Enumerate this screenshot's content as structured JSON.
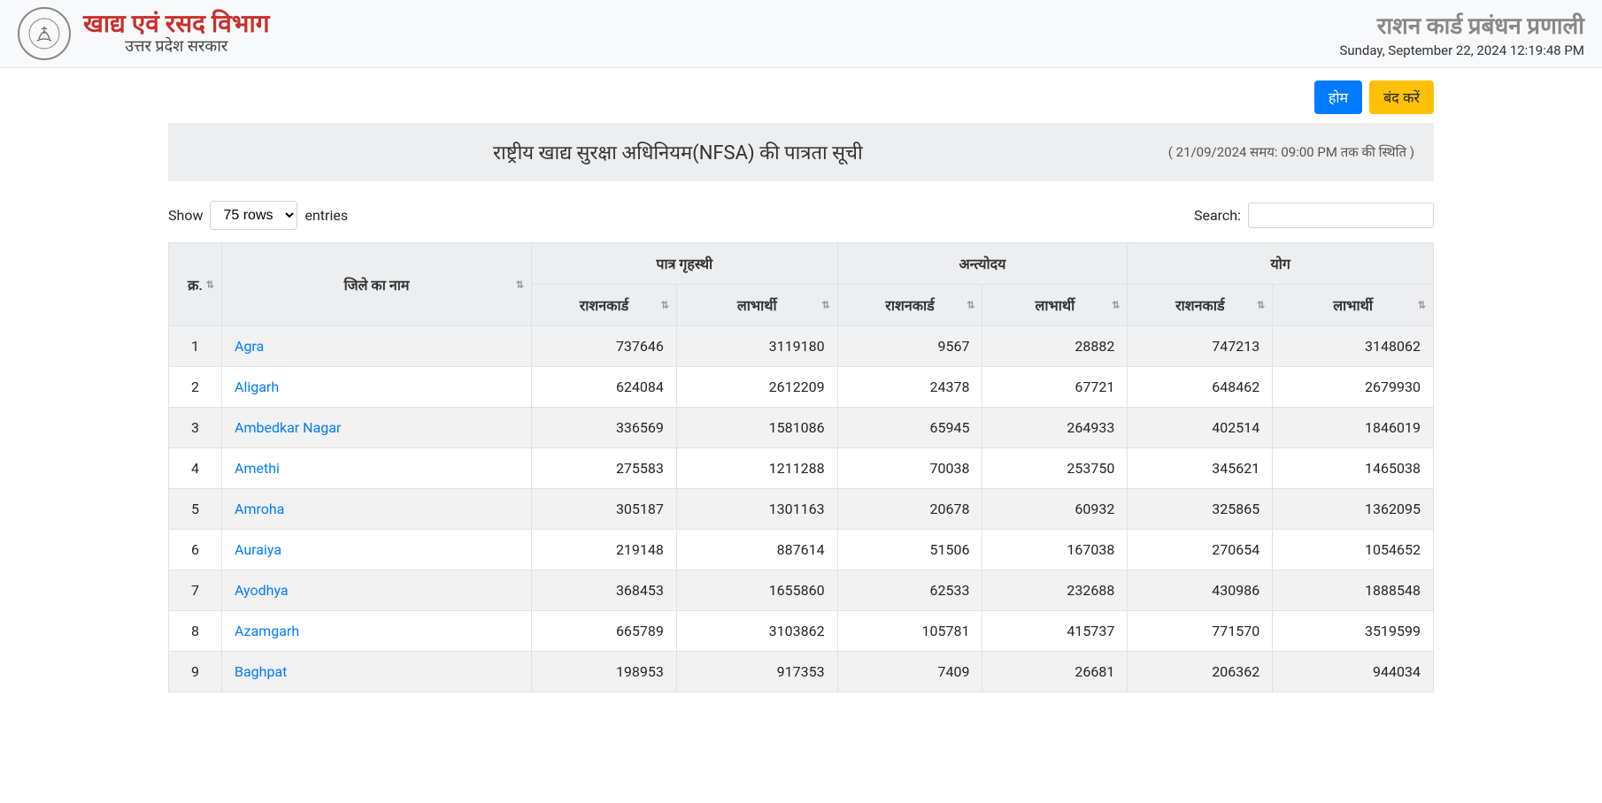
{
  "header": {
    "dept_name": "खाद्य एवं रसद विभाग",
    "dept_sub": "उत्तर प्रदेश सरकार",
    "system_name": "राशन कार्ड प्रबंधन प्रणाली",
    "datetime": "Sunday, September 22, 2024 12:19:48 PM"
  },
  "buttons": {
    "home": "होम",
    "close": "बंद करें"
  },
  "title_bar": {
    "title": "राष्ट्रीय खाद्य सुरक्षा अधिनियम(NFSA) की पात्रता सूची",
    "status": "( 21/09/2024 समय: 09:00 PM तक की स्थिति )"
  },
  "controls": {
    "show": "Show",
    "entries": "entries",
    "rows_label": "75 rows",
    "search": "Search:"
  },
  "table": {
    "headers": {
      "sr": "क्र.",
      "district": "जिले का नाम",
      "phh": "पात्र गृहस्थी",
      "aay": "अन्त्योदय",
      "total": "योग",
      "rc": "राशनकार्ड",
      "ben": "लाभार्थी"
    },
    "rows": [
      {
        "sr": "1",
        "district": "Agra",
        "phh_rc": "737646",
        "phh_ben": "3119180",
        "aay_rc": "9567",
        "aay_ben": "28882",
        "tot_rc": "747213",
        "tot_ben": "3148062"
      },
      {
        "sr": "2",
        "district": "Aligarh",
        "phh_rc": "624084",
        "phh_ben": "2612209",
        "aay_rc": "24378",
        "aay_ben": "67721",
        "tot_rc": "648462",
        "tot_ben": "2679930"
      },
      {
        "sr": "3",
        "district": "Ambedkar Nagar",
        "phh_rc": "336569",
        "phh_ben": "1581086",
        "aay_rc": "65945",
        "aay_ben": "264933",
        "tot_rc": "402514",
        "tot_ben": "1846019"
      },
      {
        "sr": "4",
        "district": "Amethi",
        "phh_rc": "275583",
        "phh_ben": "1211288",
        "aay_rc": "70038",
        "aay_ben": "253750",
        "tot_rc": "345621",
        "tot_ben": "1465038"
      },
      {
        "sr": "5",
        "district": "Amroha",
        "phh_rc": "305187",
        "phh_ben": "1301163",
        "aay_rc": "20678",
        "aay_ben": "60932",
        "tot_rc": "325865",
        "tot_ben": "1362095"
      },
      {
        "sr": "6",
        "district": "Auraiya",
        "phh_rc": "219148",
        "phh_ben": "887614",
        "aay_rc": "51506",
        "aay_ben": "167038",
        "tot_rc": "270654",
        "tot_ben": "1054652"
      },
      {
        "sr": "7",
        "district": "Ayodhya",
        "phh_rc": "368453",
        "phh_ben": "1655860",
        "aay_rc": "62533",
        "aay_ben": "232688",
        "tot_rc": "430986",
        "tot_ben": "1888548"
      },
      {
        "sr": "8",
        "district": "Azamgarh",
        "phh_rc": "665789",
        "phh_ben": "3103862",
        "aay_rc": "105781",
        "aay_ben": "415737",
        "tot_rc": "771570",
        "tot_ben": "3519599"
      },
      {
        "sr": "9",
        "district": "Baghpat",
        "phh_rc": "198953",
        "phh_ben": "917353",
        "aay_rc": "7409",
        "aay_ben": "26681",
        "tot_rc": "206362",
        "tot_ben": "944034"
      }
    ]
  }
}
